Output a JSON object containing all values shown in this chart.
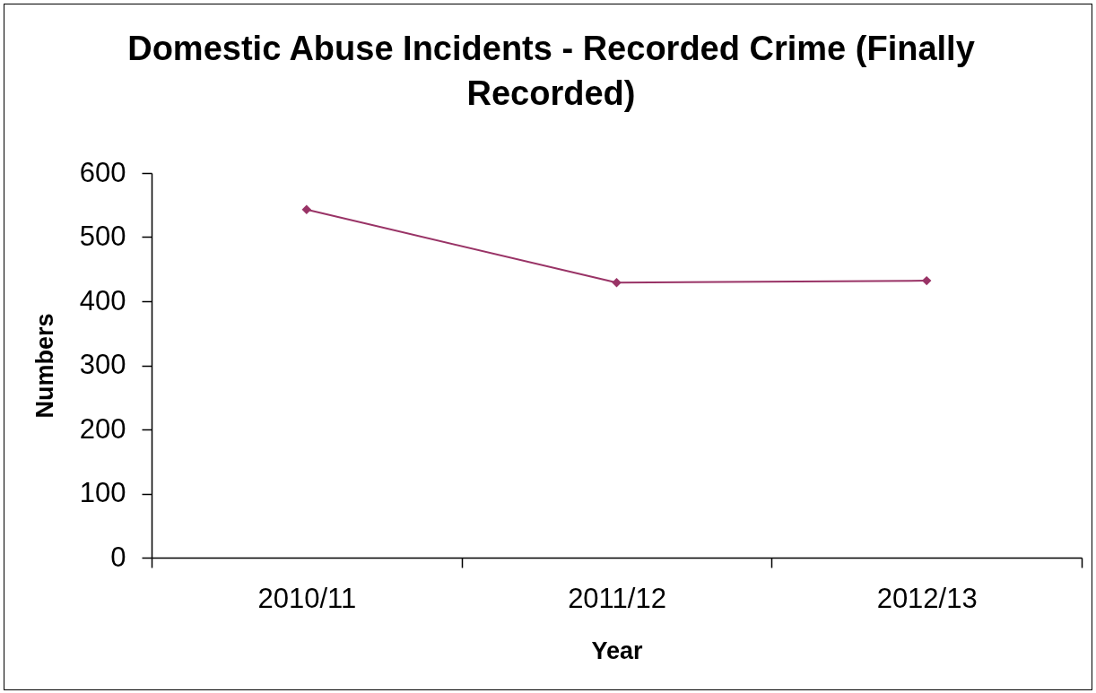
{
  "chart_data": {
    "type": "line",
    "title": "Domestic Abuse Incidents - Recorded Crime (Finally Recorded)",
    "xlabel": "Year",
    "ylabel": "Numbers",
    "categories": [
      "2010/11",
      "2011/12",
      "2012/13"
    ],
    "series": [
      {
        "color": "#993366",
        "values": [
          543,
          429,
          432
        ]
      }
    ],
    "ylim": [
      0,
      600
    ],
    "yticks": [
      0,
      100,
      200,
      300,
      400,
      500,
      600
    ],
    "marker": "diamond",
    "line_style": "solid"
  }
}
